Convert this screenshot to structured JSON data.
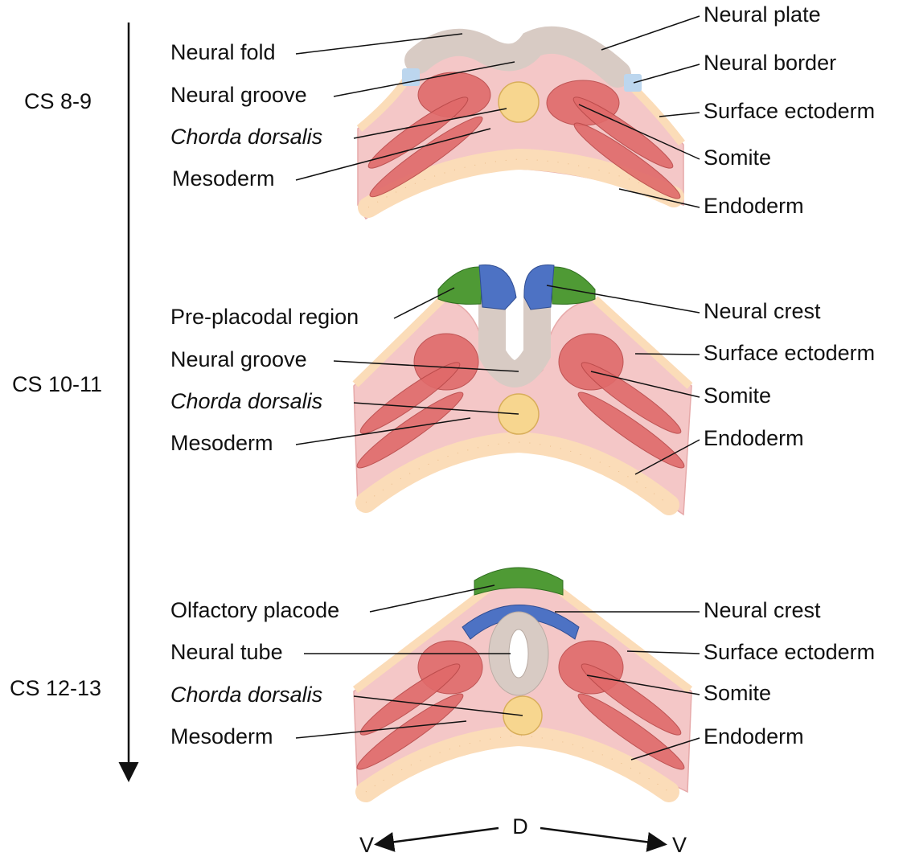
{
  "stages": [
    {
      "label": "CS 8-9",
      "left_labels": [
        "Neural fold",
        "Neural groove",
        "Chorda dorsalis",
        "Mesoderm"
      ],
      "right_labels": [
        "Neural plate",
        "Neural border",
        "Surface ectoderm",
        "Somite",
        "Endoderm"
      ]
    },
    {
      "label": "CS 10-11",
      "left_labels": [
        "Pre-placodal region",
        "Neural groove",
        "Chorda dorsalis",
        "Mesoderm"
      ],
      "right_labels": [
        "Neural crest",
        "Surface ectoderm",
        "Somite",
        "Endoderm"
      ]
    },
    {
      "label": "CS 12-13",
      "left_labels": [
        "Olfactory placode",
        "Neural tube",
        "Chorda dorsalis",
        "Mesoderm"
      ],
      "right_labels": [
        "Neural crest",
        "Surface ectoderm",
        "Somite",
        "Endoderm"
      ]
    }
  ],
  "orientation": {
    "left": "V",
    "center": "D",
    "right": "V"
  }
}
